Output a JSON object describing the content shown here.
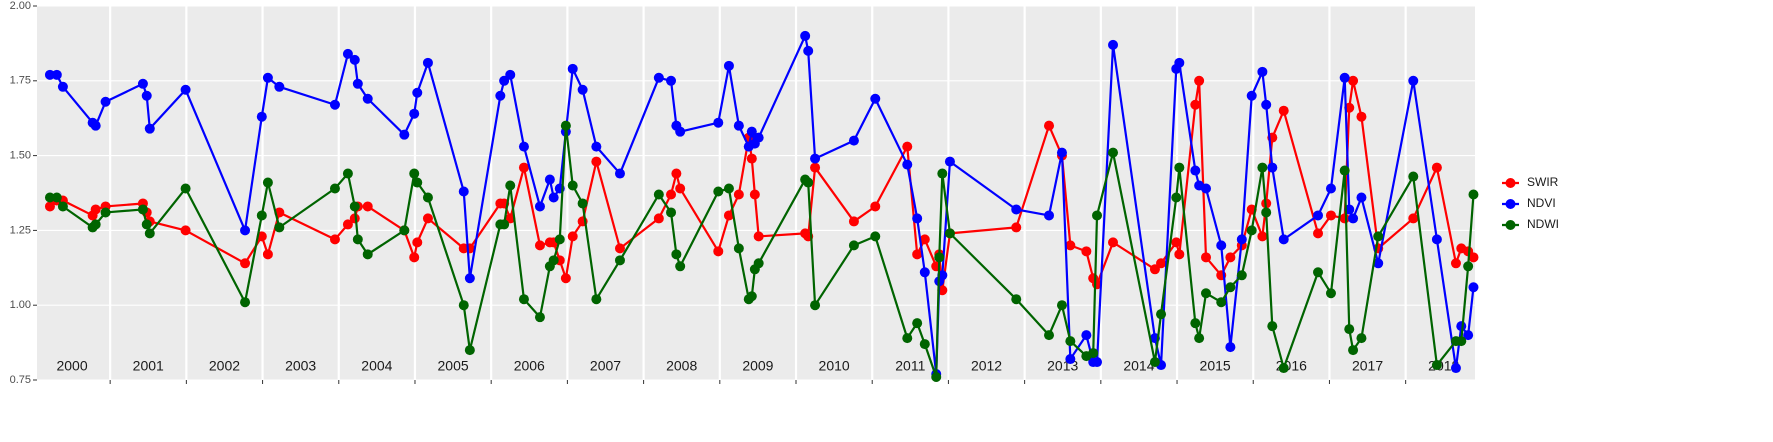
{
  "chart_data": {
    "type": "line",
    "x": [
      2000.21,
      2000.3,
      2000.38,
      2000.77,
      2000.81,
      2000.94,
      2001.43,
      2001.48,
      2001.52,
      2001.99,
      2002.77,
      2002.99,
      2003.07,
      2003.22,
      2003.95,
      2004.12,
      2004.21,
      2004.25,
      2004.38,
      2004.86,
      2004.99,
      2005.03,
      2005.17,
      2005.64,
      2005.72,
      2006.12,
      2006.17,
      2006.25,
      2006.43,
      2006.64,
      2006.77,
      2006.82,
      2006.9,
      2006.98,
      2007.07,
      2007.2,
      2007.38,
      2007.69,
      2008.2,
      2008.36,
      2008.43,
      2008.48,
      2008.98,
      2009.12,
      2009.25,
      2009.38,
      2009.42,
      2009.46,
      2009.51,
      2010.12,
      2010.16,
      2010.25,
      2010.76,
      2011.04,
      2011.46,
      2011.59,
      2011.69,
      2011.84,
      2011.88,
      2011.92,
      2012.02,
      2012.89,
      2013.32,
      2013.49,
      2013.6,
      2013.81,
      2013.9,
      2013.95,
      2014.16,
      2014.71,
      2014.79,
      2014.99,
      2015.03,
      2015.24,
      2015.29,
      2015.38,
      2015.58,
      2015.7,
      2015.85,
      2015.98,
      2016.12,
      2016.17,
      2016.25,
      2016.4,
      2016.85,
      2017.02,
      2017.2,
      2017.26,
      2017.31,
      2017.42,
      2017.64,
      2018.1,
      2018.41,
      2018.66,
      2018.73,
      2018.82,
      2018.89
    ],
    "series": [
      {
        "name": "SWIR",
        "color": "#ff0000",
        "values": [
          1.33,
          1.35,
          1.35,
          1.3,
          1.32,
          1.33,
          1.34,
          1.31,
          1.28,
          1.25,
          1.14,
          1.23,
          1.17,
          1.31,
          1.22,
          1.27,
          1.29,
          1.33,
          1.33,
          1.25,
          1.16,
          1.21,
          1.29,
          1.19,
          1.19,
          1.34,
          1.34,
          1.29,
          1.46,
          1.2,
          1.21,
          1.21,
          1.15,
          1.09,
          1.23,
          1.28,
          1.48,
          1.19,
          1.29,
          1.37,
          1.44,
          1.39,
          1.18,
          1.3,
          1.37,
          1.56,
          1.49,
          1.37,
          1.23,
          1.24,
          1.23,
          1.46,
          1.28,
          1.33,
          1.53,
          1.17,
          1.22,
          1.13,
          1.17,
          1.05,
          1.24,
          1.26,
          1.6,
          1.5,
          1.2,
          1.18,
          1.09,
          1.07,
          1.21,
          1.12,
          1.14,
          1.21,
          1.17,
          1.67,
          1.75,
          1.16,
          1.1,
          1.16,
          1.2,
          1.32,
          1.23,
          1.34,
          1.56,
          1.65,
          1.24,
          1.3,
          1.29,
          1.66,
          1.75,
          1.63,
          1.19,
          1.29,
          1.46,
          1.14,
          1.19,
          1.18,
          1.16
        ]
      },
      {
        "name": "NDVI",
        "color": "#0000ff",
        "values": [
          1.77,
          1.77,
          1.73,
          1.61,
          1.6,
          1.68,
          1.74,
          1.7,
          1.59,
          1.72,
          1.25,
          1.63,
          1.76,
          1.73,
          1.67,
          1.84,
          1.82,
          1.74,
          1.69,
          1.57,
          1.64,
          1.71,
          1.81,
          1.38,
          1.09,
          1.7,
          1.75,
          1.77,
          1.53,
          1.33,
          1.42,
          1.36,
          1.39,
          1.58,
          1.79,
          1.72,
          1.53,
          1.44,
          1.76,
          1.75,
          1.6,
          1.58,
          1.61,
          1.8,
          1.6,
          1.53,
          1.58,
          1.54,
          1.56,
          1.9,
          1.85,
          1.49,
          1.55,
          1.69,
          1.47,
          1.29,
          1.11,
          0.77,
          1.08,
          1.1,
          1.48,
          1.32,
          1.3,
          1.51,
          0.82,
          0.9,
          0.81,
          0.81,
          1.87,
          0.89,
          0.8,
          1.79,
          1.81,
          1.45,
          1.4,
          1.39,
          1.2,
          0.86,
          1.22,
          1.7,
          1.78,
          1.67,
          1.46,
          1.22,
          1.3,
          1.39,
          1.76,
          1.32,
          1.29,
          1.36,
          1.14,
          1.75,
          1.22,
          0.79,
          0.93,
          0.9,
          1.06
        ]
      },
      {
        "name": "NDWI",
        "color": "#006400",
        "values": [
          1.36,
          1.36,
          1.33,
          1.26,
          1.27,
          1.31,
          1.32,
          1.27,
          1.24,
          1.39,
          1.01,
          1.3,
          1.41,
          1.26,
          1.39,
          1.44,
          1.33,
          1.22,
          1.17,
          1.25,
          1.44,
          1.41,
          1.36,
          1.0,
          0.85,
          1.27,
          1.27,
          1.4,
          1.02,
          0.96,
          1.13,
          1.15,
          1.22,
          1.6,
          1.4,
          1.34,
          1.02,
          1.15,
          1.37,
          1.31,
          1.17,
          1.13,
          1.38,
          1.39,
          1.19,
          1.02,
          1.03,
          1.12,
          1.14,
          1.42,
          1.41,
          1.0,
          1.2,
          1.23,
          0.89,
          0.94,
          0.87,
          0.76,
          1.16,
          1.44,
          1.24,
          1.02,
          0.9,
          1.0,
          0.88,
          0.83,
          0.84,
          1.3,
          1.51,
          0.81,
          0.97,
          1.36,
          1.46,
          0.94,
          0.89,
          1.04,
          1.01,
          1.06,
          1.1,
          1.25,
          1.46,
          1.31,
          0.93,
          0.79,
          1.11,
          1.04,
          1.45,
          0.92,
          0.85,
          0.89,
          1.23,
          1.43,
          0.8,
          0.88,
          0.88,
          1.13,
          1.37
        ]
      }
    ],
    "xlim": [
      2000.04,
      2018.91
    ],
    "xticks": [
      2000,
      2001,
      2002,
      2003,
      2004,
      2005,
      2006,
      2007,
      2008,
      2009,
      2010,
      2011,
      2012,
      2013,
      2014,
      2015,
      2016,
      2017,
      2018
    ],
    "ylim": [
      0.75,
      2.0
    ],
    "yticks": [
      {
        "value": 0.75,
        "label": "0.75"
      },
      {
        "value": 1.0,
        "label": "1.00"
      },
      {
        "value": 1.25,
        "label": "1.25"
      },
      {
        "value": 1.5,
        "label": "1.50"
      },
      {
        "value": 1.75,
        "label": "1.75"
      },
      {
        "value": 2.0,
        "label": "2.00"
      }
    ],
    "grid": true,
    "legend": "right"
  }
}
